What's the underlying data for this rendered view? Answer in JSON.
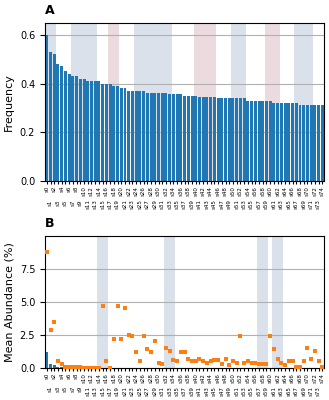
{
  "chart_data": [
    {
      "type": "bar",
      "title": "A",
      "ylabel": "Frequency",
      "categories": [
        "s0",
        "s1",
        "s2",
        "s3",
        "s4",
        "s5",
        "s6",
        "s7",
        "s8",
        "s9",
        "s10",
        "s11",
        "s12",
        "s13",
        "s14",
        "s15",
        "s16",
        "s17",
        "s18",
        "s19",
        "s20",
        "s21",
        "s22",
        "s23",
        "s24",
        "s25",
        "s26",
        "s27",
        "s28",
        "s29",
        "s30",
        "s31",
        "s32",
        "s33",
        "s34",
        "s35",
        "s36",
        "s37",
        "s38",
        "s39",
        "s40",
        "s41",
        "s42",
        "s43",
        "s44",
        "s45",
        "s46",
        "s47",
        "s48",
        "s49",
        "s50",
        "s51",
        "s52",
        "s53",
        "s54",
        "s55",
        "s56",
        "s57",
        "s58",
        "s59",
        "s60",
        "s61",
        "s62",
        "s63",
        "s64",
        "s65",
        "s66",
        "s67",
        "s68",
        "s69",
        "s70",
        "s71",
        "s72",
        "s73",
        "s74"
      ],
      "values": [
        0.6,
        0.53,
        0.52,
        0.48,
        0.47,
        0.45,
        0.44,
        0.43,
        0.43,
        0.42,
        0.42,
        0.41,
        0.41,
        0.41,
        0.41,
        0.4,
        0.4,
        0.4,
        0.39,
        0.39,
        0.38,
        0.38,
        0.37,
        0.37,
        0.37,
        0.37,
        0.37,
        0.36,
        0.36,
        0.36,
        0.36,
        0.36,
        0.36,
        0.355,
        0.355,
        0.355,
        0.355,
        0.35,
        0.35,
        0.35,
        0.35,
        0.345,
        0.345,
        0.345,
        0.345,
        0.345,
        0.34,
        0.34,
        0.34,
        0.34,
        0.34,
        0.34,
        0.34,
        0.34,
        0.33,
        0.33,
        0.33,
        0.33,
        0.33,
        0.33,
        0.33,
        0.32,
        0.32,
        0.32,
        0.32,
        0.32,
        0.32,
        0.32,
        0.31,
        0.31,
        0.31,
        0.31,
        0.31,
        0.31,
        0.31
      ],
      "ylim": [
        0.0,
        0.65
      ],
      "yticks": [
        0.0,
        0.2,
        0.4,
        0.6
      ],
      "grid": true,
      "bands": [
        {
          "from": "s0",
          "to": "s2",
          "color": "#b8c4d8"
        },
        {
          "from": "s7",
          "to": "s13",
          "color": "#b8c4d8"
        },
        {
          "from": "s17",
          "to": "s19",
          "color": "#d8b8c0"
        },
        {
          "from": "s24",
          "to": "s33",
          "color": "#b8c4d8"
        },
        {
          "from": "s40",
          "to": "s45",
          "color": "#d8b8c0"
        },
        {
          "from": "s50",
          "to": "s53",
          "color": "#b8c4d8"
        },
        {
          "from": "s59",
          "to": "s62",
          "color": "#d8b8c0"
        },
        {
          "from": "s67",
          "to": "s71",
          "color": "#b8c4d8"
        }
      ]
    },
    {
      "type": "bar",
      "title": "B",
      "ylabel": "Mean Abundance (%)",
      "categories": [
        "s0",
        "s1",
        "s2",
        "s3",
        "s4",
        "s5",
        "s6",
        "s7",
        "s8",
        "s9",
        "s10",
        "s11",
        "s12",
        "s13",
        "s14",
        "s15",
        "s16",
        "s17",
        "s18",
        "s19",
        "s20",
        "s21",
        "s22",
        "s23",
        "s24",
        "s25",
        "s26",
        "s27",
        "s28",
        "s29",
        "s30",
        "s31",
        "s32",
        "s33",
        "s34",
        "s35",
        "s36",
        "s37",
        "s38",
        "s39",
        "s40",
        "s41",
        "s42",
        "s43",
        "s44",
        "s45",
        "s46",
        "s47",
        "s48",
        "s49",
        "s50",
        "s51",
        "s52",
        "s53",
        "s54",
        "s55",
        "s56",
        "s57",
        "s58",
        "s59",
        "s60",
        "s61",
        "s62",
        "s63",
        "s64",
        "s65",
        "s66",
        "s67",
        "s68",
        "s69",
        "s70",
        "s71",
        "s72",
        "s73",
        "s74"
      ],
      "series": [
        {
          "type": "bar",
          "values": [
            1.2,
            0.3,
            0.2,
            0.1,
            0.1,
            0.05,
            0.02,
            0.01,
            0.01,
            0.0,
            0.0,
            0.0,
            0.0,
            0.0,
            0.0,
            0.0,
            0.0,
            0.0,
            0.0,
            0.0,
            0.0,
            0.0,
            0.0,
            0.0,
            0.0,
            0.0,
            0.0,
            0.0,
            0.0,
            0.0,
            0.0,
            0.0,
            0.0,
            0.0,
            0.0,
            0.0,
            0.0,
            0.0,
            0.0,
            0.0,
            0.0,
            0.0,
            0.0,
            0.0,
            0.0,
            0.0,
            0.0,
            0.0,
            0.0,
            0.0,
            0.0,
            0.0,
            0.0,
            0.0,
            0.0,
            0.0,
            0.0,
            0.0,
            0.0,
            0.0,
            0.0,
            0.0,
            0.0,
            0.0,
            0.0,
            0.0,
            0.0,
            0.0,
            0.0,
            0.0,
            0.0,
            0.0,
            0.0,
            0.0,
            0.0
          ]
        },
        {
          "type": "scatter",
          "marker": "square",
          "values": [
            8.8,
            2.9,
            3.5,
            0.5,
            0.3,
            0.1,
            0.1,
            0.05,
            0.05,
            0.05,
            0.03,
            0.02,
            0.02,
            0.01,
            0.01,
            4.7,
            0.5,
            0.01,
            2.2,
            4.7,
            2.2,
            4.5,
            2.5,
            2.4,
            1.2,
            0.5,
            2.4,
            1.4,
            1.2,
            2.0,
            0.4,
            0.3,
            1.5,
            1.3,
            0.6,
            0.5,
            1.2,
            1.2,
            0.7,
            0.5,
            0.5,
            0.7,
            0.5,
            0.4,
            0.5,
            0.6,
            0.6,
            0.3,
            0.7,
            0.2,
            0.5,
            0.4,
            2.4,
            0.4,
            0.5,
            0.4,
            0.4,
            0.3,
            0.3,
            0.3,
            2.4,
            1.4,
            0.7,
            0.4,
            0.2,
            0.5,
            0.5,
            0.1,
            0.1,
            0.5,
            1.5,
            0.7,
            1.3,
            0.5,
            0.05
          ]
        }
      ],
      "ylim": [
        0.0,
        10.0
      ],
      "yticks": [
        0.0,
        2.5,
        5.0,
        7.5
      ],
      "grid": true,
      "bands": [
        {
          "from": "s14",
          "to": "s16",
          "color": "#b8c4d8"
        },
        {
          "from": "s32",
          "to": "s34",
          "color": "#b8c4d8"
        },
        {
          "from": "s57",
          "to": "s59",
          "color": "#b8c4d8"
        },
        {
          "from": "s61",
          "to": "s63",
          "color": "#b8c4d8"
        }
      ]
    }
  ]
}
